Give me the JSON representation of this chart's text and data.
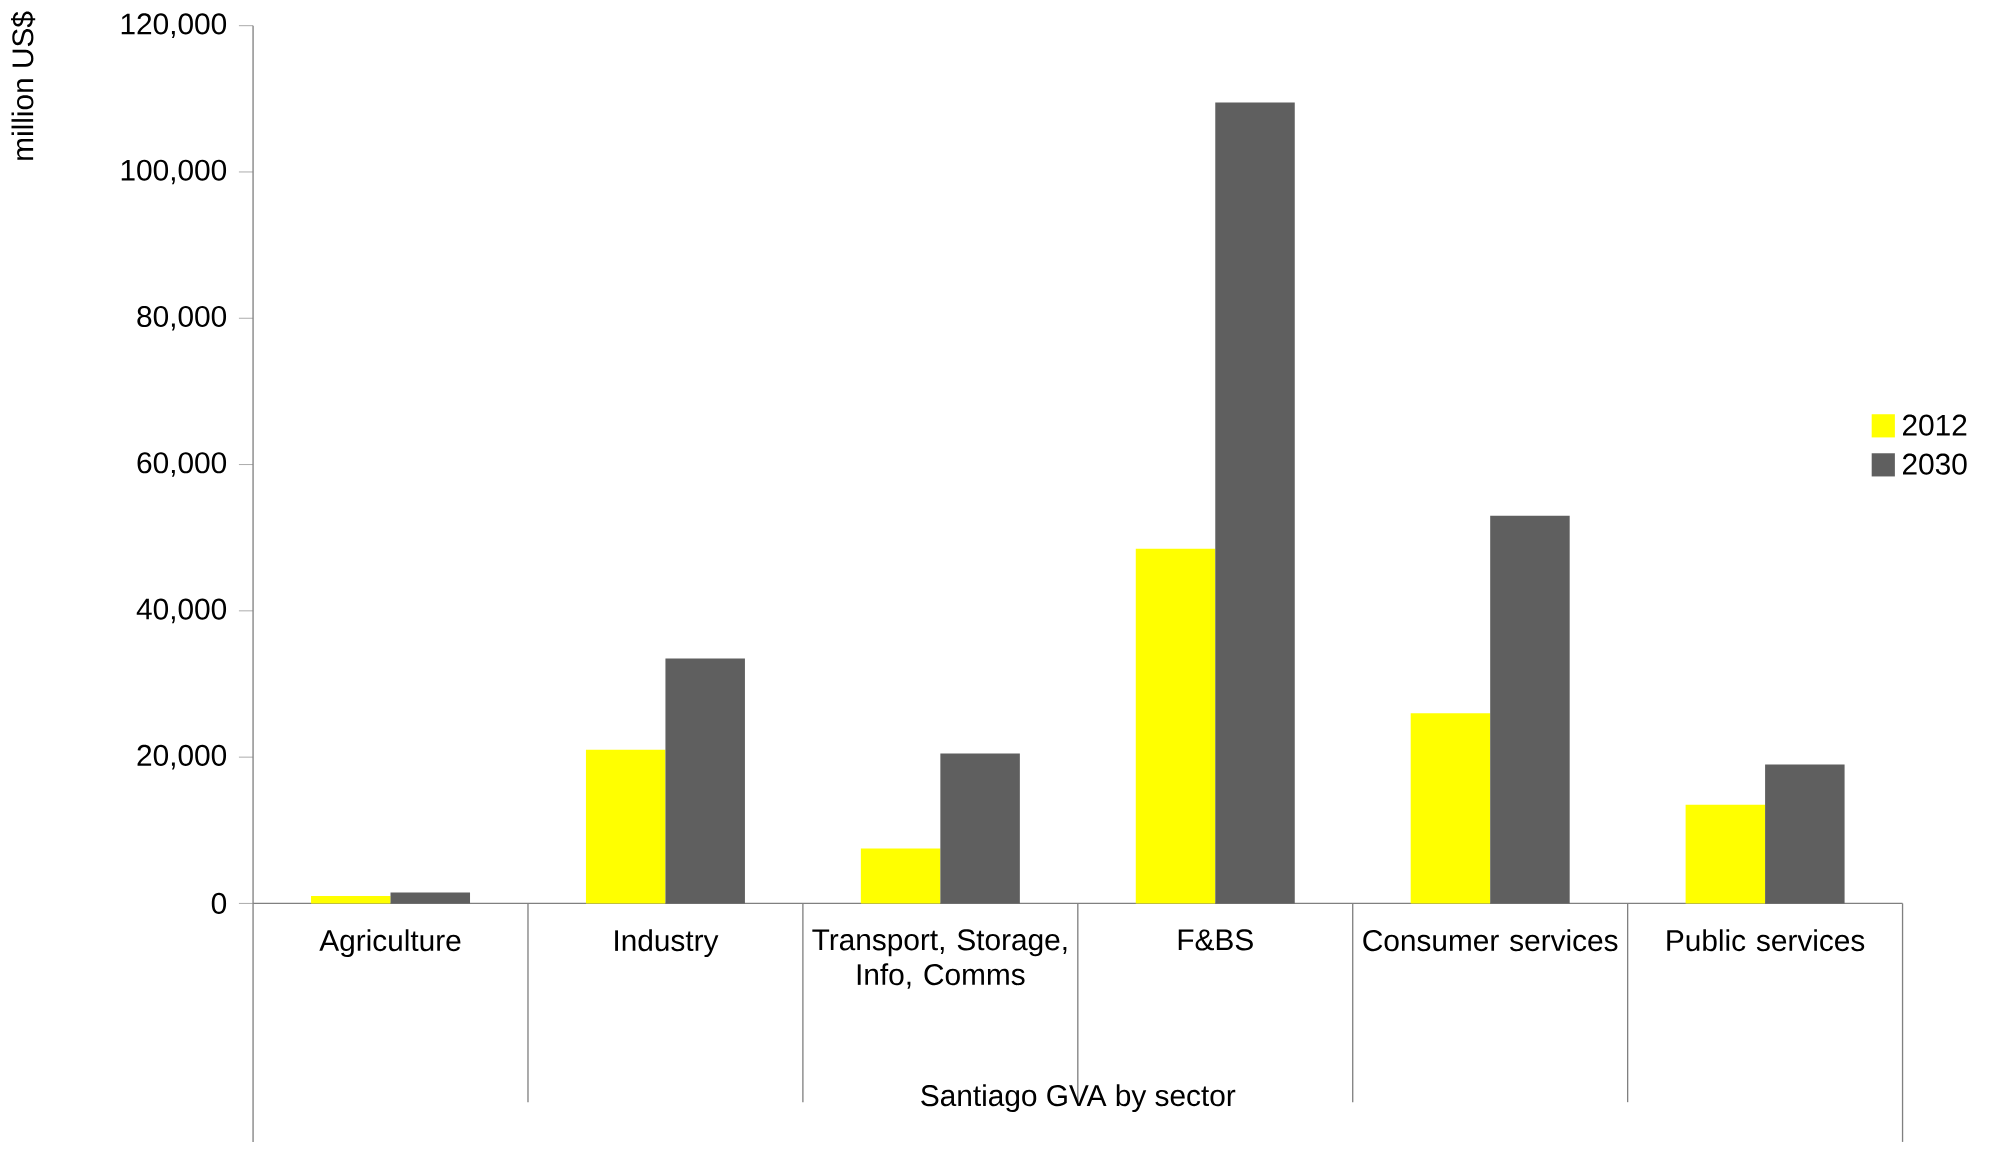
{
  "chart_data": {
    "type": "bar",
    "xlabel": "Santiago GVA by sector",
    "ylabel": "million US$",
    "categories": [
      "Agriculture",
      "Industry",
      "Transport, Storage, Info, Comms",
      "F&BS",
      "Consumer services",
      "Public services"
    ],
    "series": [
      {
        "name": "2012",
        "color": "#ffff00",
        "values": [
          1000,
          21000,
          7500,
          48500,
          26000,
          13500
        ]
      },
      {
        "name": "2030",
        "color": "#5f5f5f",
        "values": [
          1500,
          33500,
          20500,
          109500,
          53000,
          19000
        ]
      }
    ],
    "ylim": [
      0,
      120000
    ],
    "yticks": [
      {
        "value": 0,
        "label": "0"
      },
      {
        "value": 20000,
        "label": "20,000"
      },
      {
        "value": 40000,
        "label": "40,000"
      },
      {
        "value": 60000,
        "label": "60,000"
      },
      {
        "value": 80000,
        "label": "80,000"
      },
      {
        "value": 100000,
        "label": "100,000"
      },
      {
        "value": 120000,
        "label": "120,000"
      }
    ],
    "legend": "right",
    "grid": false
  }
}
